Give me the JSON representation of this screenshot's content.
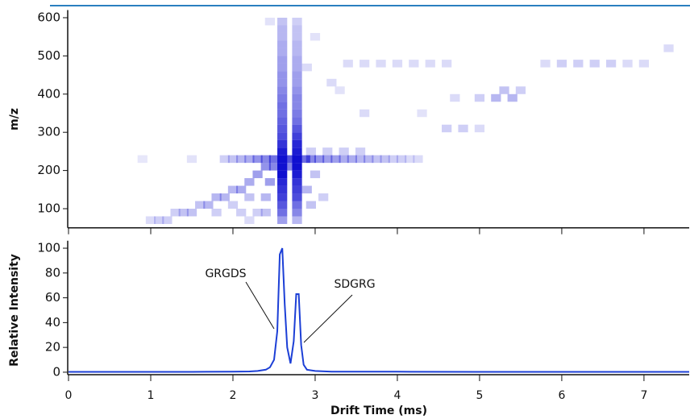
{
  "chart_data": [
    {
      "type": "heatmap",
      "ylabel": "m/z",
      "color": "#1010d0",
      "xlim": [
        0,
        7.55
      ],
      "ylim": [
        50,
        620
      ],
      "xticks": [
        0,
        1,
        2,
        3,
        4,
        5,
        6,
        7
      ],
      "yticks": [
        100,
        200,
        300,
        400,
        500,
        600
      ],
      "x": [
        2.6,
        2.6,
        2.6,
        2.6,
        2.6,
        2.6,
        2.6,
        2.6,
        2.6,
        2.6,
        2.6,
        2.6,
        2.6,
        2.6,
        2.6,
        2.6,
        2.6,
        2.6,
        2.6,
        2.6,
        2.6,
        2.6,
        2.6,
        2.6,
        2.6,
        2.6,
        2.6,
        2.78,
        2.78,
        2.78,
        2.78,
        2.78,
        2.78,
        2.78,
        2.78,
        2.78,
        2.78,
        2.78,
        2.78,
        2.78,
        2.78,
        2.78,
        2.78,
        2.78,
        2.78,
        2.78,
        2.78,
        2.78,
        2.78,
        2.78,
        2.78,
        2.78,
        2.78,
        2.78,
        1.9,
        2.0,
        2.1,
        2.2,
        2.3,
        2.4,
        2.95,
        3.05,
        3.15,
        3.25,
        3.35,
        3.45,
        3.55,
        3.65,
        3.75,
        3.85,
        3.95,
        4.05,
        4.15,
        4.25,
        2.95,
        3.15,
        3.35,
        3.55,
        1.0,
        1.1,
        1.2,
        1.3,
        1.4,
        1.5,
        1.6,
        1.7,
        1.8,
        1.9,
        2.0,
        2.1,
        2.2,
        2.3,
        2.4,
        2.0,
        2.2,
        2.3,
        2.4,
        2.45,
        1.8,
        2.1,
        2.2,
        2.4,
        2.9,
        3.0,
        3.1,
        2.95,
        3.4,
        3.6,
        3.8,
        4.0,
        4.2,
        4.4,
        4.6,
        5.8,
        6.0,
        6.2,
        6.4,
        6.6,
        6.8,
        7.0,
        5.0,
        5.2,
        5.4,
        5.3,
        5.5,
        4.7,
        4.6,
        4.8,
        5.0,
        3.2,
        3.6,
        4.3,
        3.0,
        3.3,
        2.45,
        2.9,
        7.3,
        0.9,
        1.5,
        2.5,
        2.7,
        2.88,
        2.7,
        2.5
      ],
      "y": [
        70,
        90,
        110,
        130,
        150,
        170,
        190,
        210,
        230,
        250,
        270,
        290,
        310,
        330,
        350,
        370,
        390,
        410,
        430,
        450,
        470,
        490,
        510,
        530,
        550,
        570,
        590,
        70,
        90,
        110,
        130,
        150,
        170,
        190,
        210,
        230,
        250,
        270,
        290,
        310,
        330,
        350,
        370,
        390,
        410,
        430,
        450,
        470,
        490,
        510,
        530,
        550,
        570,
        590,
        230,
        230,
        230,
        230,
        230,
        230,
        230,
        230,
        230,
        230,
        230,
        230,
        230,
        230,
        230,
        230,
        230,
        230,
        230,
        230,
        250,
        250,
        250,
        250,
        70,
        70,
        70,
        90,
        90,
        90,
        110,
        110,
        130,
        130,
        150,
        150,
        170,
        190,
        210,
        110,
        130,
        90,
        130,
        170,
        90,
        90,
        70,
        90,
        150,
        190,
        130,
        110,
        480,
        480,
        480,
        480,
        480,
        480,
        480,
        480,
        480,
        480,
        480,
        480,
        480,
        480,
        390,
        390,
        390,
        410,
        410,
        390,
        310,
        310,
        310,
        430,
        350,
        350,
        550,
        410,
        590,
        470,
        520,
        230,
        230,
        230,
        230,
        230,
        210,
        210
      ],
      "values": [
        0.4,
        0.6,
        0.7,
        0.8,
        0.85,
        0.9,
        1,
        1,
        1,
        0.95,
        0.85,
        0.75,
        0.7,
        0.65,
        0.6,
        0.6,
        0.55,
        0.5,
        0.45,
        0.45,
        0.4,
        0.4,
        0.35,
        0.35,
        0.3,
        0.3,
        0.25,
        0.3,
        0.5,
        0.6,
        0.75,
        0.8,
        0.85,
        0.95,
        1,
        1,
        0.95,
        0.9,
        0.8,
        0.7,
        0.6,
        0.55,
        0.5,
        0.5,
        0.45,
        0.4,
        0.4,
        0.35,
        0.35,
        0.3,
        0.3,
        0.25,
        0.25,
        0.2,
        0.2,
        0.25,
        0.3,
        0.35,
        0.45,
        0.5,
        0.5,
        0.45,
        0.4,
        0.4,
        0.35,
        0.35,
        0.3,
        0.3,
        0.25,
        0.25,
        0.2,
        0.2,
        0.15,
        0.15,
        0.2,
        0.2,
        0.2,
        0.2,
        0.15,
        0.2,
        0.2,
        0.2,
        0.25,
        0.25,
        0.25,
        0.3,
        0.3,
        0.3,
        0.3,
        0.35,
        0.35,
        0.4,
        0.45,
        0.2,
        0.25,
        0.2,
        0.3,
        0.4,
        0.2,
        0.2,
        0.15,
        0.25,
        0.3,
        0.25,
        0.2,
        0.25,
        0.15,
        0.15,
        0.15,
        0.15,
        0.15,
        0.15,
        0.15,
        0.15,
        0.2,
        0.2,
        0.2,
        0.2,
        0.15,
        0.15,
        0.2,
        0.3,
        0.3,
        0.25,
        0.2,
        0.15,
        0.2,
        0.2,
        0.15,
        0.15,
        0.15,
        0.12,
        0.12,
        0.12,
        0.12,
        0.15,
        0.15,
        0.1,
        0.12,
        0.6,
        0.7,
        0.6,
        0.5,
        0.5
      ]
    },
    {
      "type": "line",
      "ylabel": "Relative Intensity",
      "xlabel": "Drift Time (ms)",
      "color": "#1c3fd6",
      "annotations": [
        "GRGDS",
        "SDGRG"
      ],
      "xlim": [
        0,
        7.55
      ],
      "ylim": [
        -2,
        106
      ],
      "xticks": [
        0,
        1,
        2,
        3,
        4,
        5,
        6,
        7
      ],
      "yticks": [
        0,
        20,
        40,
        60,
        80,
        100
      ],
      "x": [
        0,
        0.5,
        1,
        1.5,
        2,
        2.2,
        2.3,
        2.4,
        2.45,
        2.5,
        2.54,
        2.57,
        2.6,
        2.63,
        2.66,
        2.7,
        2.74,
        2.77,
        2.8,
        2.83,
        2.86,
        2.9,
        3.0,
        3.2,
        4,
        5,
        6,
        7,
        7.55
      ],
      "values": [
        0.3,
        0.3,
        0.3,
        0.3,
        0.4,
        0.6,
        1,
        2,
        4,
        10,
        33,
        95,
        100,
        55,
        20,
        7,
        25,
        63,
        63,
        22,
        6,
        2,
        1,
        0.5,
        0.4,
        0.3,
        0.3,
        0.3,
        0.3
      ]
    }
  ]
}
